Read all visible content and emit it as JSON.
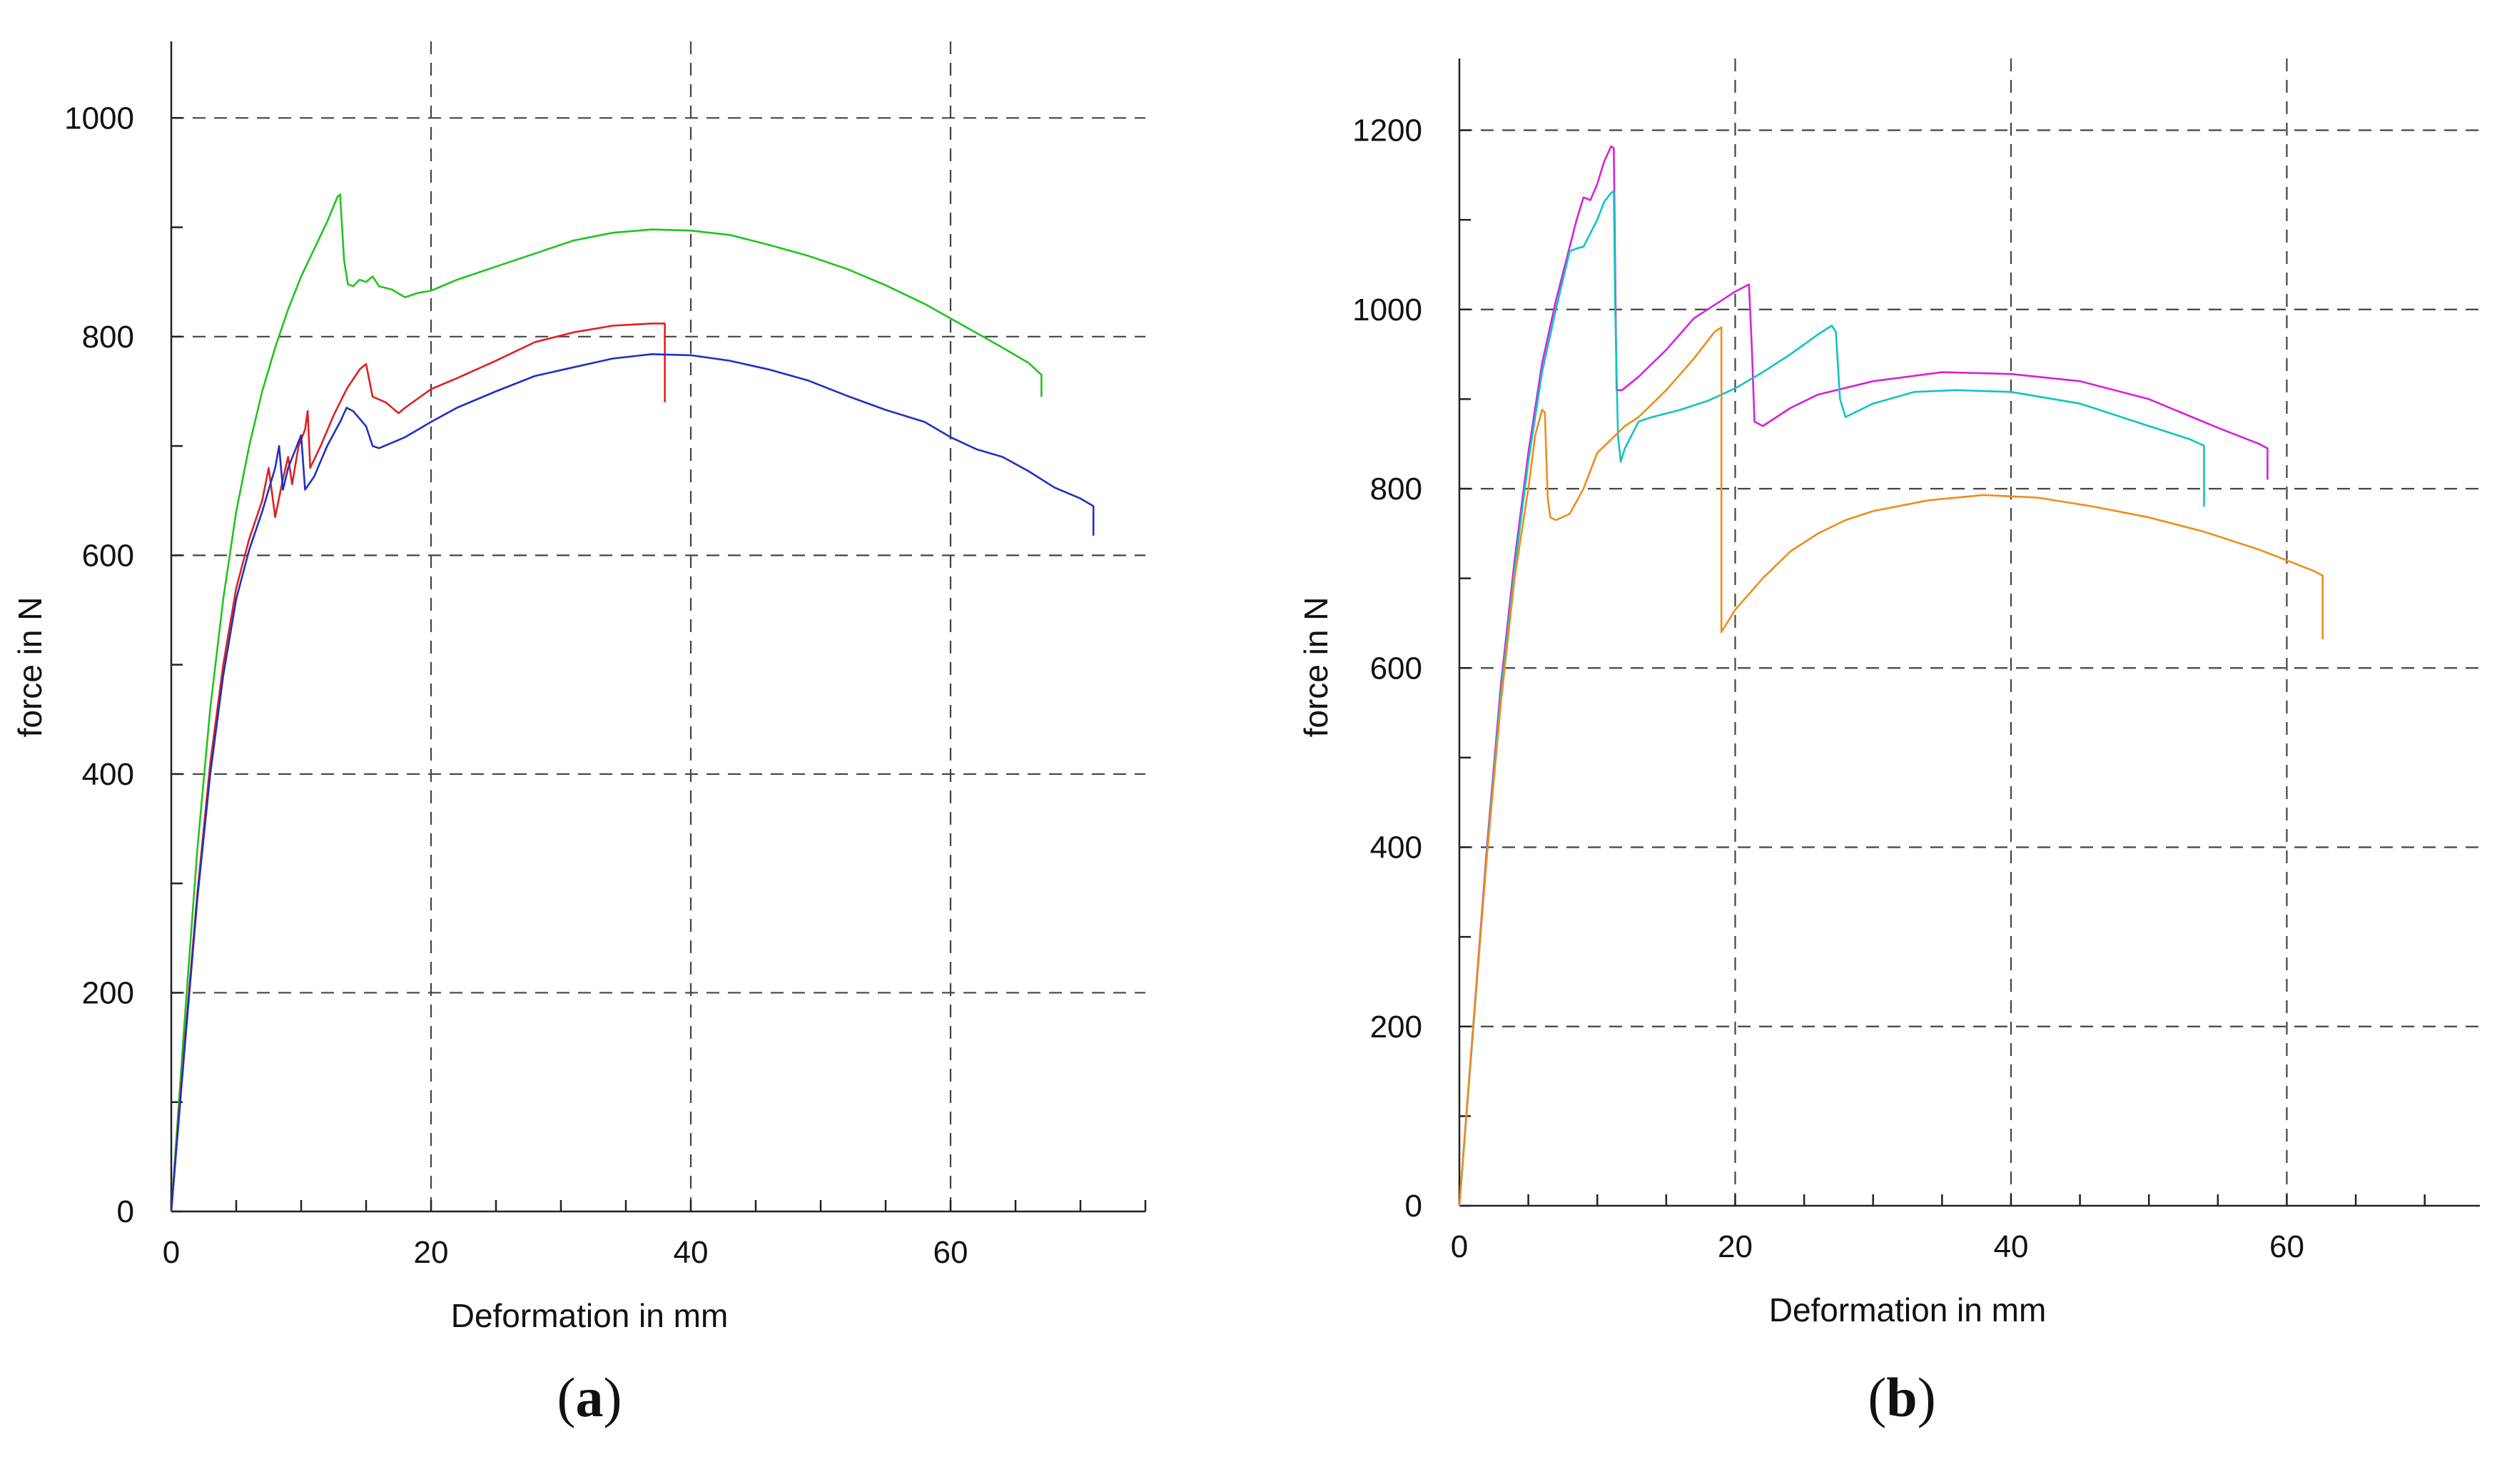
{
  "chart_data": [
    {
      "type": "line",
      "panel_label": "(a)",
      "panel_letter": "a",
      "xlabel": "Deformation in mm",
      "ylabel": "force in N",
      "xlim": [
        0,
        75
      ],
      "ylim": [
        0,
        1070
      ],
      "x_ticks": [
        0,
        20,
        40,
        60
      ],
      "y_ticks": [
        0,
        200,
        400,
        600,
        800,
        1000
      ],
      "x_minor_step": 5,
      "y_minor_step": 100,
      "grid": true,
      "series": [
        {
          "name": "green",
          "color": "#1fc41f",
          "points": [
            [
              0,
              0
            ],
            [
              1,
              170
            ],
            [
              2,
              330
            ],
            [
              3,
              460
            ],
            [
              4,
              560
            ],
            [
              5,
              640
            ],
            [
              6,
              700
            ],
            [
              7,
              750
            ],
            [
              8,
              790
            ],
            [
              9,
              825
            ],
            [
              10,
              855
            ],
            [
              11,
              880
            ],
            [
              12,
              905
            ],
            [
              12.8,
              928
            ],
            [
              13,
              930
            ],
            [
              13.3,
              870
            ],
            [
              13.6,
              848
            ],
            [
              14,
              846
            ],
            [
              14.5,
              852
            ],
            [
              15,
              850
            ],
            [
              15.5,
              855
            ],
            [
              16,
              846
            ],
            [
              17,
              843
            ],
            [
              18,
              836
            ],
            [
              19,
              840
            ],
            [
              20,
              842
            ],
            [
              22,
              852
            ],
            [
              25,
              864
            ],
            [
              28,
              876
            ],
            [
              31,
              888
            ],
            [
              34,
              895
            ],
            [
              37,
              898
            ],
            [
              40,
              897
            ],
            [
              43,
              893
            ],
            [
              46,
              884
            ],
            [
              49,
              874
            ],
            [
              52,
              862
            ],
            [
              55,
              847
            ],
            [
              58,
              830
            ],
            [
              61,
              810
            ],
            [
              64,
              790
            ],
            [
              66,
              776
            ],
            [
              67,
              765
            ],
            [
              67,
              745
            ]
          ]
        },
        {
          "name": "red",
          "color": "#e02020",
          "points": [
            [
              0,
              0
            ],
            [
              1,
              150
            ],
            [
              2,
              290
            ],
            [
              3,
              410
            ],
            [
              4,
              500
            ],
            [
              5,
              570
            ],
            [
              6,
              615
            ],
            [
              7,
              650
            ],
            [
              7.5,
              680
            ],
            [
              8,
              635
            ],
            [
              8.6,
              670
            ],
            [
              9,
              690
            ],
            [
              9.3,
              665
            ],
            [
              9.8,
              700
            ],
            [
              10.3,
              715
            ],
            [
              10.5,
              732
            ],
            [
              10.7,
              680
            ],
            [
              11.5,
              700
            ],
            [
              12.5,
              728
            ],
            [
              13.5,
              752
            ],
            [
              14.5,
              770
            ],
            [
              15,
              775
            ],
            [
              15.5,
              745
            ],
            [
              16.5,
              740
            ],
            [
              17.5,
              730
            ],
            [
              18,
              735
            ],
            [
              20,
              752
            ],
            [
              22,
              762
            ],
            [
              25,
              778
            ],
            [
              28,
              795
            ],
            [
              31,
              804
            ],
            [
              34,
              810
            ],
            [
              37,
              812
            ],
            [
              38,
              812
            ],
            [
              38,
              740
            ]
          ]
        },
        {
          "name": "blue",
          "color": "#2030c0",
          "points": [
            [
              0,
              0
            ],
            [
              1,
              145
            ],
            [
              2,
              285
            ],
            [
              3,
              400
            ],
            [
              4,
              490
            ],
            [
              5,
              560
            ],
            [
              6,
              605
            ],
            [
              7,
              640
            ],
            [
              7.5,
              660
            ],
            [
              8,
              680
            ],
            [
              8.3,
              700
            ],
            [
              8.6,
              660
            ],
            [
              9,
              680
            ],
            [
              9.5,
              695
            ],
            [
              10,
              710
            ],
            [
              10.3,
              660
            ],
            [
              11,
              672
            ],
            [
              12,
              700
            ],
            [
              13,
              722
            ],
            [
              13.5,
              735
            ],
            [
              14,
              732
            ],
            [
              15,
              718
            ],
            [
              15.5,
              700
            ],
            [
              16,
              698
            ],
            [
              18,
              708
            ],
            [
              20,
              722
            ],
            [
              22,
              735
            ],
            [
              25,
              750
            ],
            [
              28,
              764
            ],
            [
              31,
              772
            ],
            [
              34,
              780
            ],
            [
              37,
              784
            ],
            [
              40,
              783
            ],
            [
              43,
              778
            ],
            [
              46,
              770
            ],
            [
              49,
              760
            ],
            [
              52,
              746
            ],
            [
              55,
              733
            ],
            [
              58,
              722
            ],
            [
              60,
              708
            ],
            [
              62,
              697
            ],
            [
              64,
              690
            ],
            [
              66,
              677
            ],
            [
              68,
              662
            ],
            [
              70,
              652
            ],
            [
              71,
              645
            ],
            [
              71,
              618
            ]
          ]
        }
      ]
    },
    {
      "type": "line",
      "panel_label": "(b)",
      "panel_letter": "b",
      "xlabel": "Deformation in mm",
      "ylabel": "force in N",
      "xlim": [
        0,
        74
      ],
      "ylim": [
        0,
        1280
      ],
      "x_ticks": [
        0,
        20,
        40,
        60
      ],
      "y_ticks": [
        0,
        200,
        400,
        600,
        800,
        1000,
        1200
      ],
      "x_minor_step": 5,
      "y_minor_step": 100,
      "grid": true,
      "series": [
        {
          "name": "magenta",
          "color": "#d820d8",
          "points": [
            [
              0,
              0
            ],
            [
              1,
              200
            ],
            [
              2,
              400
            ],
            [
              3,
              580
            ],
            [
              4,
              720
            ],
            [
              5,
              840
            ],
            [
              6,
              940
            ],
            [
              7,
              1010
            ],
            [
              8,
              1070
            ],
            [
              8.5,
              1100
            ],
            [
              9,
              1125
            ],
            [
              9.5,
              1122
            ],
            [
              10,
              1140
            ],
            [
              10.5,
              1165
            ],
            [
              11,
              1182
            ],
            [
              11.2,
              1180
            ],
            [
              11.3,
              1040
            ],
            [
              11.4,
              910
            ],
            [
              11.8,
              910
            ],
            [
              13,
              925
            ],
            [
              15,
              955
            ],
            [
              17,
              990
            ],
            [
              19,
              1010
            ],
            [
              20,
              1020
            ],
            [
              21,
              1028
            ],
            [
              21.2,
              960
            ],
            [
              21.4,
              875
            ],
            [
              22,
              870
            ],
            [
              24,
              890
            ],
            [
              26,
              905
            ],
            [
              30,
              920
            ],
            [
              35,
              930
            ],
            [
              40,
              928
            ],
            [
              45,
              920
            ],
            [
              50,
              900
            ],
            [
              55,
              868
            ],
            [
              58,
              850
            ],
            [
              58.6,
              845
            ],
            [
              58.6,
              810
            ]
          ]
        },
        {
          "name": "cyan",
          "color": "#10c4c4",
          "points": [
            [
              0,
              0
            ],
            [
              1,
              195
            ],
            [
              2,
              395
            ],
            [
              3,
              570
            ],
            [
              4,
              710
            ],
            [
              5,
              830
            ],
            [
              6,
              930
            ],
            [
              7,
              1000
            ],
            [
              8,
              1065
            ],
            [
              8.5,
              1068
            ],
            [
              9,
              1070
            ],
            [
              10,
              1100
            ],
            [
              10.5,
              1120
            ],
            [
              11,
              1130
            ],
            [
              11.2,
              1132
            ],
            [
              11.3,
              1000
            ],
            [
              11.5,
              860
            ],
            [
              11.7,
              830
            ],
            [
              12,
              845
            ],
            [
              13,
              875
            ],
            [
              14,
              880
            ],
            [
              16,
              888
            ],
            [
              18,
              898
            ],
            [
              20,
              912
            ],
            [
              22,
              930
            ],
            [
              24,
              950
            ],
            [
              26,
              972
            ],
            [
              27,
              982
            ],
            [
              27.3,
              975
            ],
            [
              27.6,
              900
            ],
            [
              28,
              880
            ],
            [
              30,
              895
            ],
            [
              33,
              908
            ],
            [
              36,
              910
            ],
            [
              40,
              908
            ],
            [
              45,
              895
            ],
            [
              50,
              870
            ],
            [
              53,
              855
            ],
            [
              54,
              848
            ],
            [
              54,
              780
            ]
          ]
        },
        {
          "name": "orange",
          "color": "#f08c1a",
          "points": [
            [
              0,
              0
            ],
            [
              1,
              200
            ],
            [
              2,
              390
            ],
            [
              3,
              560
            ],
            [
              4,
              700
            ],
            [
              5,
              800
            ],
            [
              5.5,
              860
            ],
            [
              6,
              888
            ],
            [
              6.2,
              885
            ],
            [
              6.4,
              790
            ],
            [
              6.6,
              768
            ],
            [
              7,
              765
            ],
            [
              8,
              772
            ],
            [
              9,
              800
            ],
            [
              10,
              840
            ],
            [
              11,
              855
            ],
            [
              12,
              870
            ],
            [
              13,
              880
            ],
            [
              15,
              910
            ],
            [
              17,
              945
            ],
            [
              18.5,
              975
            ],
            [
              19,
              980
            ],
            [
              19,
              640
            ],
            [
              20,
              665
            ],
            [
              22,
              700
            ],
            [
              24,
              730
            ],
            [
              26,
              750
            ],
            [
              28,
              765
            ],
            [
              30,
              775
            ],
            [
              34,
              787
            ],
            [
              38,
              793
            ],
            [
              42,
              790
            ],
            [
              46,
              780
            ],
            [
              50,
              768
            ],
            [
              54,
              752
            ],
            [
              58,
              732
            ],
            [
              62,
              708
            ],
            [
              62.6,
              703
            ],
            [
              62.6,
              632
            ]
          ]
        }
      ]
    }
  ]
}
